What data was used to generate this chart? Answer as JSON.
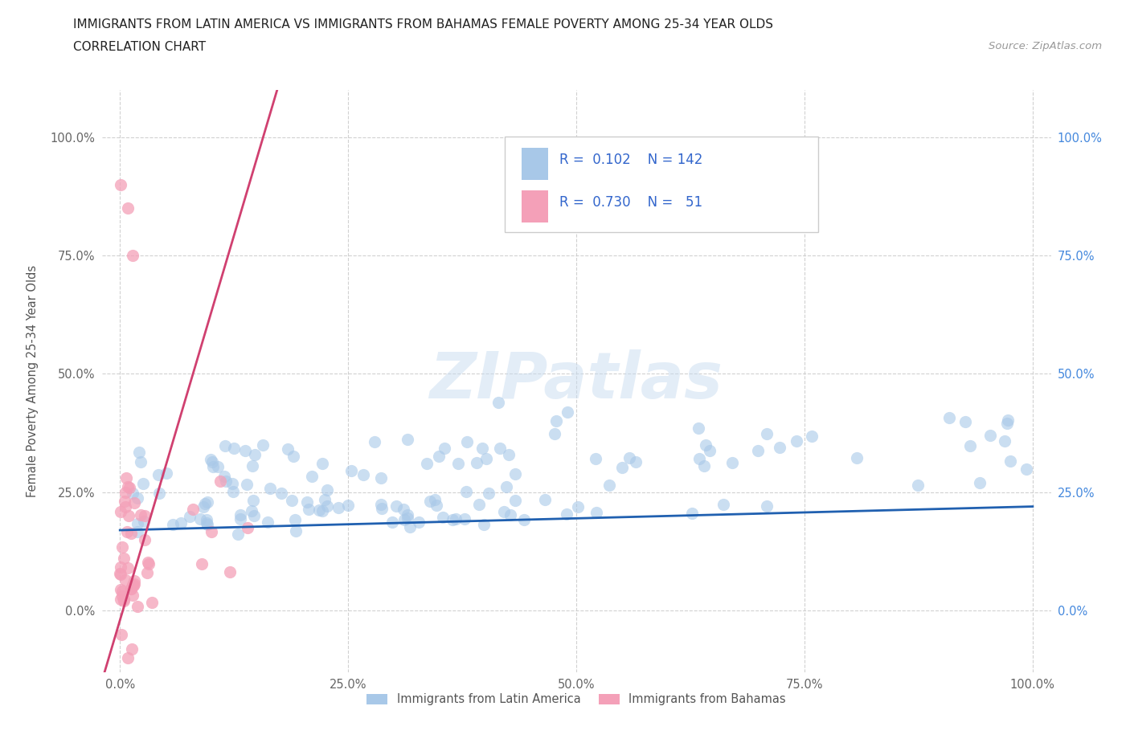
{
  "title_line1": "IMMIGRANTS FROM LATIN AMERICA VS IMMIGRANTS FROM BAHAMAS FEMALE POVERTY AMONG 25-34 YEAR OLDS",
  "title_line2": "CORRELATION CHART",
  "source": "Source: ZipAtlas.com",
  "ylabel": "Female Poverty Among 25-34 Year Olds",
  "xlim": [
    -0.02,
    1.02
  ],
  "ylim": [
    -0.13,
    1.1
  ],
  "xticks": [
    0.0,
    0.25,
    0.5,
    0.75,
    1.0
  ],
  "yticks": [
    0.0,
    0.25,
    0.5,
    0.75,
    1.0
  ],
  "R_latin": 0.102,
  "N_latin": 142,
  "R_bahamas": 0.73,
  "N_bahamas": 51,
  "color_latin": "#A8C8E8",
  "color_bahamas": "#F4A0B8",
  "line_color_latin": "#2060B0",
  "line_color_bahamas": "#D04070",
  "background_color": "#FFFFFF",
  "grid_color": "#CCCCCC",
  "watermark": "ZIPatlas",
  "legend_label_latin": "Immigrants from Latin America",
  "legend_label_bahamas": "Immigrants from Bahamas"
}
